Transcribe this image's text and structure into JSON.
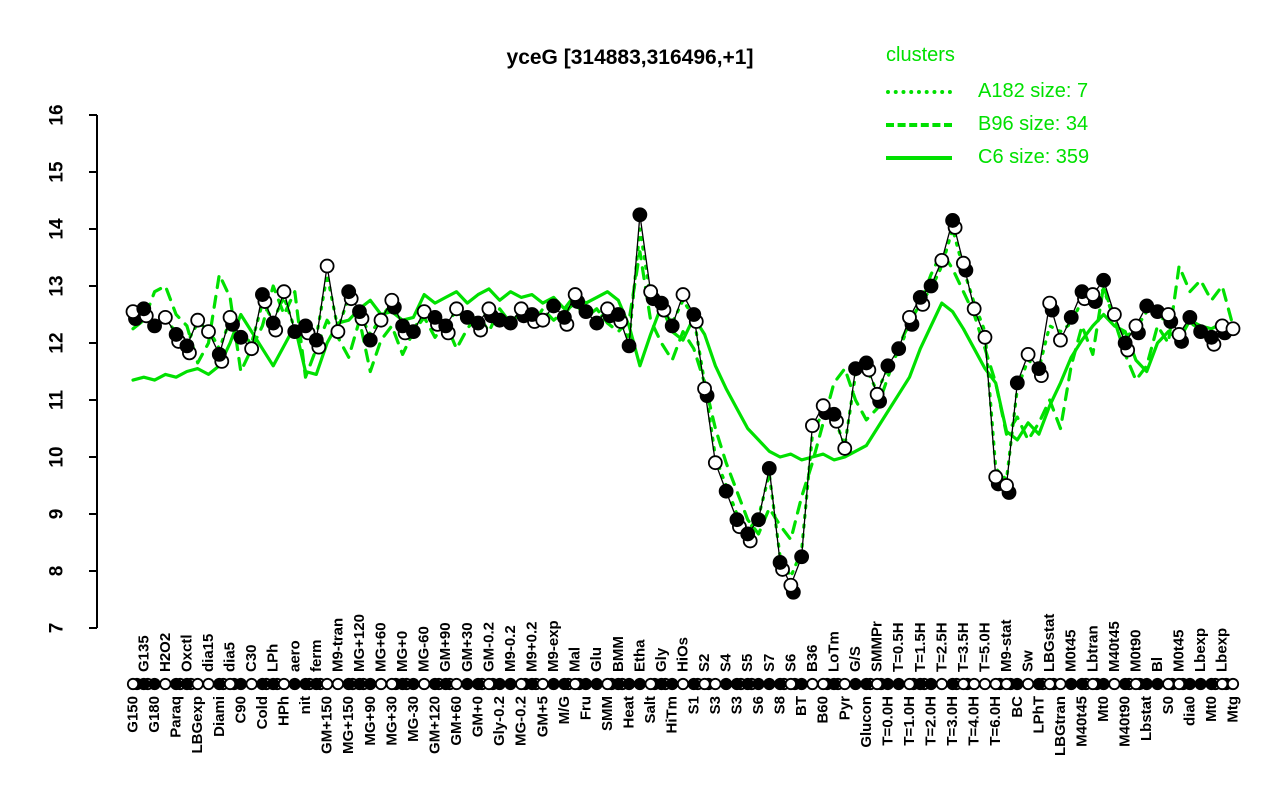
{
  "title": "yceG [314883,316496,+1]",
  "legend": {
    "title": "clusters",
    "entries": [
      {
        "label": "A182 size: 7",
        "style": "dotted"
      },
      {
        "label": "B96 size: 34",
        "style": "dashed"
      },
      {
        "label": "C6 size: 359",
        "style": "solid"
      }
    ]
  },
  "colors": {
    "cluster_green": "#00e000",
    "gene_black": "#000000",
    "background": "#ffffff"
  },
  "chart_data": {
    "type": "line",
    "title": "yceG [314883,316496,+1]",
    "xlabel": "",
    "ylabel": "",
    "ylim": [
      7,
      16
    ],
    "yticks": [
      7,
      8,
      9,
      10,
      11,
      12,
      13,
      14,
      15,
      16
    ],
    "grid": false,
    "legend_position": "top-right",
    "x_label_rows": "alternate-below-above",
    "categories": [
      "G150",
      "G135",
      "G180",
      "H2O2",
      "Paraq",
      "Oxctl",
      "LBGexp",
      "dia15",
      "Diami",
      "dia5",
      "C90",
      "C30",
      "Cold",
      "LPh",
      "HPh",
      "aero",
      "nit",
      "ferm",
      "GM+150",
      "M9-tran",
      "MG+150",
      "MG+120",
      "MG+90",
      "MG+60",
      "MG+30",
      "MG+0",
      "MG-30",
      "MG-60",
      "GM+120",
      "GM+90",
      "GM+60",
      "GM+30",
      "GM+0",
      "GM-0.2",
      "Gly-0.2",
      "M9-0.2",
      "MG-0.2",
      "M9+0.2",
      "GM+5",
      "M9-exp",
      "M/G",
      "Mal",
      "Fru",
      "Glu",
      "SMM",
      "BMM",
      "Heat",
      "Etha",
      "Salt",
      "Gly",
      "HiTm",
      "HiOs",
      "S1",
      "S2",
      "S3",
      "S4",
      "S3",
      "S5",
      "S6",
      "S7",
      "S8",
      "S6",
      "BT",
      "B36",
      "B60",
      "LoTm",
      "Pyr",
      "G/S",
      "Glucon",
      "SMMPr",
      "T=0.0H",
      "T=0.5H",
      "T=1.0H",
      "T=1.5H",
      "T=2.0H",
      "T=2.5H",
      "T=3.0H",
      "T=3.5H",
      "T=4.0H",
      "T=5.0H",
      "T=6.0H",
      "M9-stat",
      "BC",
      "Sw",
      "LPhT",
      "LBGstat",
      "LBGtran",
      "M0t45",
      "M40t45",
      "Lbtran",
      "Mt0",
      "M40t45",
      "M40t90",
      "M0t90",
      "Lbstat",
      "Bl",
      "S0",
      "M0t45",
      "dia0",
      "Lbexp",
      "Mt0",
      "Lbexp",
      "Mtg"
    ],
    "point_symbols_segments": [
      "offoffoofo",
      "foffofffoo",
      "fffooffoff",
      "offoffofof",
      "foffofffof",
      "fofoofffff",
      "fofoofoffo",
      "ffoffofooo",
      "oofofooffo",
      "fofoffoofffoo"
    ],
    "series": [
      {
        "name": "yceG gene profile",
        "color": "#000000",
        "style": "points",
        "values": [
          12.55,
          12.6,
          12.3,
          12.45,
          12.15,
          11.95,
          12.4,
          12.2,
          11.8,
          12.45,
          12.1,
          11.9,
          12.85,
          12.35,
          12.9,
          12.2,
          12.3,
          12.05,
          13.35,
          12.2,
          12.9,
          12.55,
          12.05,
          12.4,
          12.75,
          12.3,
          12.2,
          12.55,
          12.45,
          12.3,
          12.6,
          12.45,
          12.35,
          12.6,
          12.4,
          12.35,
          12.6,
          12.5,
          12.4,
          12.65,
          12.45,
          12.85,
          12.55,
          12.35,
          12.6,
          12.5,
          11.95,
          14.25,
          12.9,
          12.7,
          12.3,
          12.85,
          12.5,
          11.2,
          9.9,
          9.4,
          8.9,
          8.65,
          8.9,
          9.8,
          8.15,
          7.75,
          8.25,
          10.55,
          10.9,
          10.75,
          10.15,
          11.55,
          11.65,
          11.1,
          11.6,
          11.9,
          12.45,
          12.8,
          13.0,
          13.45,
          14.15,
          13.4,
          12.6,
          12.1,
          9.65,
          9.5,
          11.3,
          11.8,
          11.55,
          12.7,
          12.05,
          12.45,
          12.9,
          12.85,
          13.1,
          12.5,
          12.0,
          12.3,
          12.65,
          12.55,
          12.5,
          12.15,
          12.45,
          12.2,
          12.1,
          12.3,
          12.25
        ]
      },
      {
        "name": "A182 size: 7",
        "color": "#00e000",
        "style": "dotted",
        "values": [
          12.45,
          12.55,
          12.35,
          12.4,
          12.2,
          12.0,
          12.35,
          12.25,
          11.9,
          12.4,
          12.15,
          12.0,
          12.7,
          12.4,
          12.8,
          12.25,
          12.35,
          12.1,
          13.2,
          12.25,
          12.8,
          12.5,
          12.15,
          12.45,
          12.7,
          12.35,
          12.25,
          12.5,
          12.4,
          12.35,
          12.55,
          12.4,
          12.4,
          12.55,
          12.45,
          12.4,
          12.55,
          12.45,
          12.45,
          12.6,
          12.5,
          12.75,
          12.5,
          12.4,
          12.55,
          12.45,
          12.05,
          14.0,
          12.8,
          12.6,
          12.35,
          12.75,
          12.45,
          11.3,
          10.0,
          9.5,
          9.0,
          8.7,
          8.95,
          9.7,
          8.25,
          7.9,
          8.35,
          10.4,
          10.8,
          10.7,
          10.2,
          11.45,
          11.55,
          11.15,
          11.55,
          11.85,
          12.35,
          12.7,
          12.95,
          13.35,
          14.0,
          13.3,
          12.7,
          12.2,
          9.8,
          9.6,
          11.2,
          11.7,
          11.55,
          12.3,
          12.2,
          12.35,
          12.75,
          12.7,
          12.95,
          12.4,
          12.1,
          12.25,
          12.55,
          12.45,
          12.4,
          12.2,
          12.35,
          12.25,
          12.15,
          12.25,
          12.2
        ]
      },
      {
        "name": "B96 size: 34",
        "color": "#00e000",
        "style": "dashed",
        "values": [
          12.25,
          12.4,
          12.9,
          13.0,
          12.5,
          12.3,
          11.65,
          12.0,
          13.2,
          12.8,
          11.5,
          11.9,
          12.3,
          13.0,
          12.5,
          12.9,
          11.4,
          11.9,
          12.4,
          12.1,
          11.75,
          12.4,
          11.5,
          12.05,
          12.3,
          11.8,
          12.2,
          12.45,
          12.1,
          12.35,
          11.9,
          12.25,
          12.5,
          12.2,
          12.6,
          12.35,
          12.55,
          12.3,
          12.6,
          12.4,
          12.55,
          12.7,
          12.45,
          12.6,
          12.35,
          12.2,
          12.4,
          13.6,
          12.4,
          12.0,
          11.7,
          12.2,
          11.9,
          11.3,
          10.5,
          9.9,
          9.4,
          8.9,
          8.65,
          9.1,
          8.8,
          8.55,
          9.3,
          9.9,
          10.6,
          11.3,
          11.55,
          11.0,
          10.65,
          10.85,
          11.4,
          11.95,
          12.35,
          12.7,
          13.2,
          13.6,
          13.3,
          12.9,
          12.5,
          11.9,
          11.3,
          10.4,
          10.7,
          10.3,
          10.6,
          11.0,
          10.5,
          11.6,
          12.3,
          11.8,
          13.0,
          12.4,
          11.8,
          11.35,
          11.6,
          12.3,
          12.0,
          13.35,
          12.9,
          13.1,
          12.75,
          13.0,
          12.3
        ]
      },
      {
        "name": "C6 size: 359",
        "color": "#00e000",
        "style": "solid",
        "values": [
          11.35,
          11.4,
          11.35,
          11.45,
          11.4,
          11.5,
          11.55,
          11.45,
          11.6,
          12.0,
          12.5,
          12.2,
          11.9,
          11.6,
          11.95,
          12.3,
          11.5,
          11.45,
          12.0,
          12.35,
          12.4,
          12.6,
          12.75,
          12.5,
          12.55,
          12.4,
          12.45,
          12.85,
          12.7,
          12.8,
          12.9,
          12.7,
          12.85,
          12.95,
          12.75,
          12.9,
          12.8,
          12.85,
          12.7,
          12.8,
          12.6,
          12.85,
          12.7,
          12.8,
          12.9,
          12.75,
          12.3,
          11.6,
          12.15,
          12.65,
          12.2,
          12.05,
          12.45,
          12.15,
          11.6,
          11.2,
          10.85,
          10.5,
          10.3,
          10.1,
          10.0,
          10.05,
          9.95,
          10.0,
          10.05,
          9.95,
          10.0,
          10.1,
          10.2,
          10.5,
          10.8,
          11.1,
          11.4,
          11.9,
          12.3,
          12.7,
          12.55,
          12.25,
          11.9,
          11.55,
          11.3,
          10.45,
          10.3,
          10.6,
          10.4,
          10.9,
          11.3,
          11.75,
          12.05,
          12.3,
          12.5,
          12.3,
          12.2,
          11.7,
          11.5,
          12.0,
          12.2,
          12.05,
          12.4,
          12.3,
          12.25,
          12.35,
          12.3
        ]
      }
    ]
  }
}
